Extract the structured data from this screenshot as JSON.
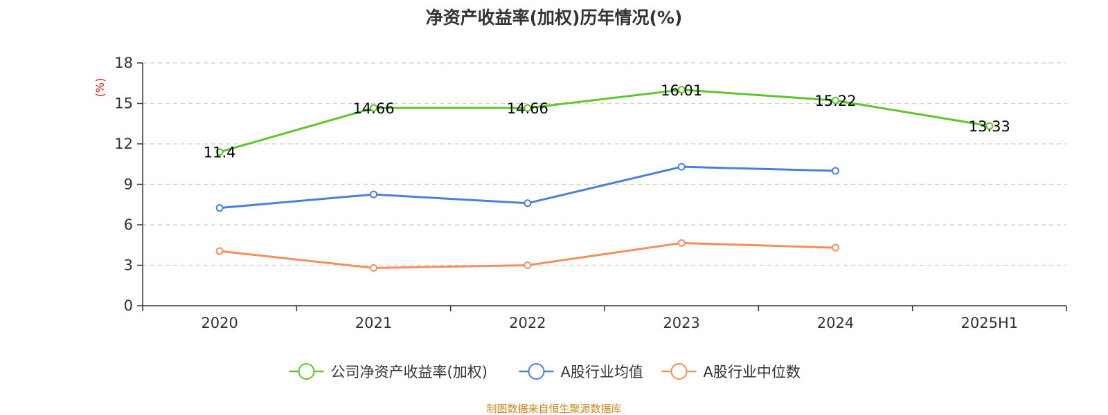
{
  "chart_data": {
    "type": "line",
    "title": "净资产收益率(加权)历年情况(%)",
    "ylabel": "(%)",
    "xlabel": "",
    "categories": [
      "2020",
      "2021",
      "2022",
      "2023",
      "2024",
      "2025H1"
    ],
    "ylim": [
      0,
      18
    ],
    "yticks": [
      0,
      3,
      6,
      9,
      12,
      15,
      18
    ],
    "grid": true,
    "legend_position": "bottom",
    "series": [
      {
        "name": "公司净资产收益率(加权)",
        "color": "#5ec52b",
        "values": [
          11.4,
          14.66,
          14.66,
          16.01,
          15.22,
          13.33
        ],
        "labels": [
          "11.4",
          "14.66",
          "14.66",
          "16.01",
          "15.22",
          "13.33"
        ],
        "show_labels": true
      },
      {
        "name": "A股行业均值",
        "color": "#4a7fdc",
        "values": [
          7.25,
          8.25,
          7.6,
          10.3,
          10.0,
          null
        ],
        "show_labels": false
      },
      {
        "name": "A股行业中位数",
        "color": "#f38f5d",
        "values": [
          4.05,
          2.8,
          3.0,
          4.65,
          4.3,
          null
        ],
        "show_labels": false
      }
    ]
  },
  "source_text": "制图数据来自恒生聚源数据库",
  "colors": {
    "axis": "#333333",
    "grid": "#cccccc",
    "ylabel": "#e8150b",
    "source": "#c5861e"
  }
}
